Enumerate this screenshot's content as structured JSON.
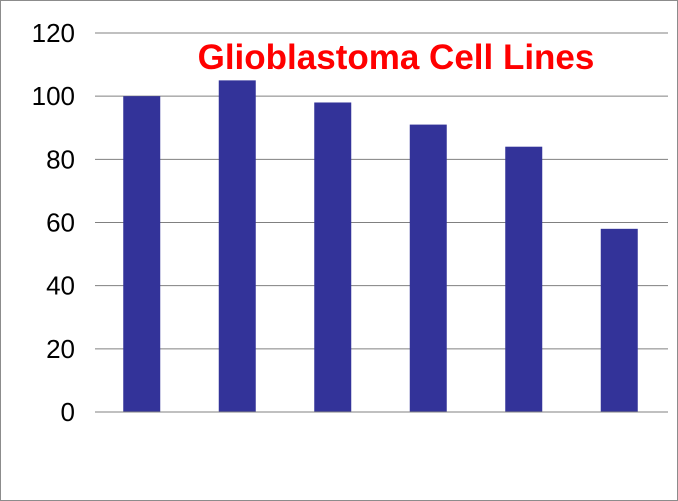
{
  "chart_data": {
    "type": "bar",
    "title": "Glioblastoma Cell Lines",
    "xlabel": "",
    "ylabel": "",
    "categories": [
      "",
      "",
      "",
      "",
      "",
      ""
    ],
    "values": [
      100,
      105,
      98,
      91,
      84,
      58
    ],
    "ylim": [
      0,
      120
    ],
    "yticks": [
      0,
      20,
      40,
      60,
      80,
      100,
      120
    ],
    "grid": true,
    "legend": "none",
    "colors": {
      "bar": "#333399",
      "title": "#ff0000",
      "gridline": "#808080",
      "axis": "#808080"
    }
  }
}
